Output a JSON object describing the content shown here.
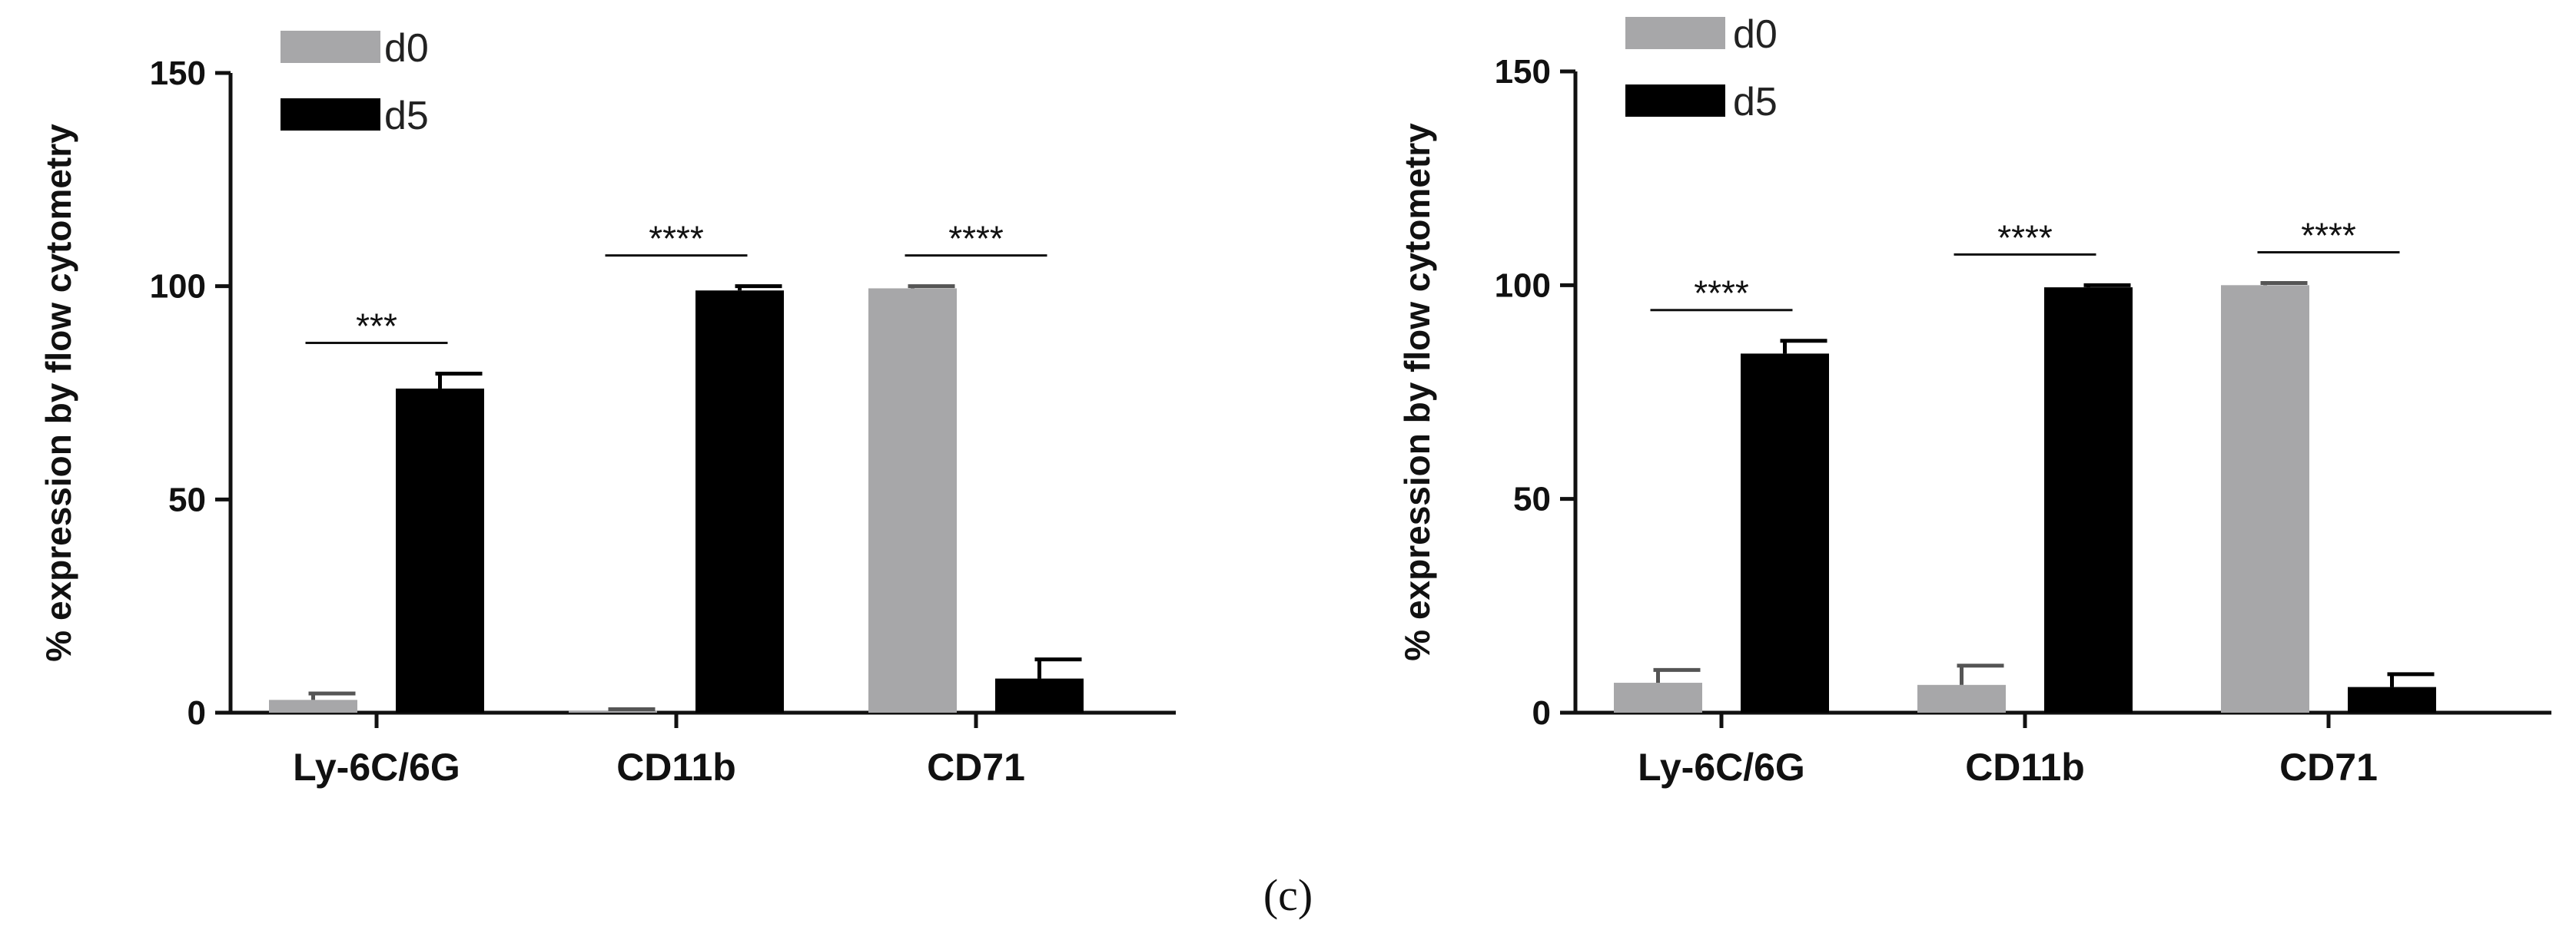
{
  "figure": {
    "caption": "(c)"
  },
  "chart_data": [
    {
      "type": "bar",
      "categories": [
        "Ly-6C/6G",
        "CD11b",
        "CD71"
      ],
      "series": [
        {
          "name": "d0",
          "color": "#a7a7a9",
          "values": [
            3,
            0.5,
            99.5
          ],
          "errors": [
            1.5,
            0.3,
            0.5
          ]
        },
        {
          "name": "d5",
          "color": "#000000",
          "values": [
            76,
            99,
            8
          ],
          "errors": [
            3.5,
            1,
            4.5
          ]
        }
      ],
      "significance": [
        "***",
        "****",
        "****"
      ],
      "ylabel": "% expression by flow cytometry",
      "xlabel": "",
      "ylim": [
        0,
        150
      ],
      "yticks": [
        0,
        50,
        100,
        150
      ],
      "legend_position": "top-left"
    },
    {
      "type": "bar",
      "categories": [
        "Ly-6C/6G",
        "CD11b",
        "CD71"
      ],
      "series": [
        {
          "name": "d0",
          "color": "#a7a7a9",
          "values": [
            7,
            6.5,
            100
          ],
          "errors": [
            3,
            4.5,
            0.5
          ]
        },
        {
          "name": "d5",
          "color": "#000000",
          "values": [
            84,
            99.5,
            6
          ],
          "errors": [
            3,
            0.5,
            3
          ]
        }
      ],
      "significance": [
        "****",
        "****",
        "****"
      ],
      "ylabel": "% expression by flow cytometry",
      "xlabel": "",
      "ylim": [
        0,
        150
      ],
      "yticks": [
        0,
        50,
        100,
        150
      ],
      "legend_position": "top-left"
    }
  ]
}
